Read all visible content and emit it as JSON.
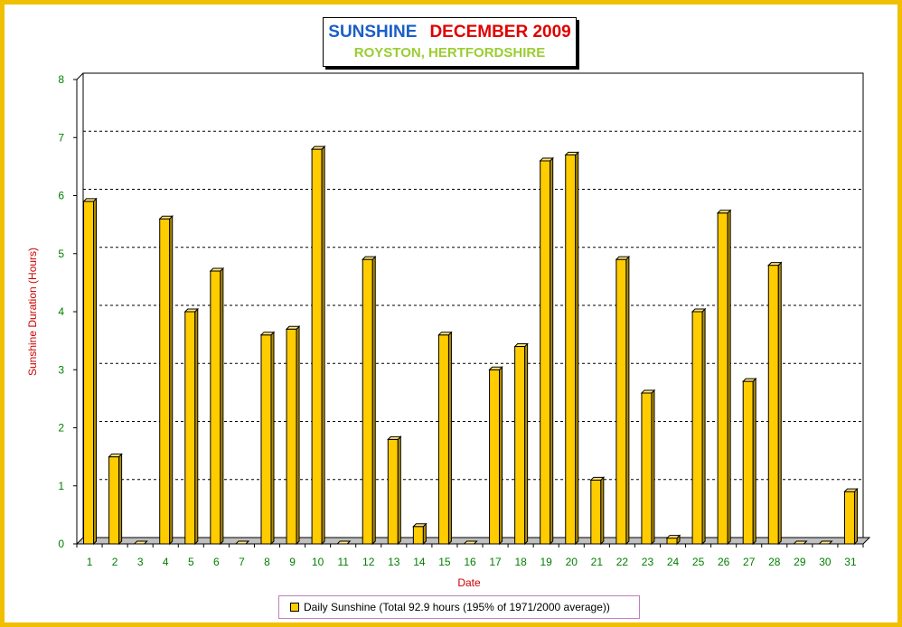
{
  "window": {
    "title": "SUNSHINE",
    "month": "DECEMBER 2009",
    "location": "ROYSTON, HERTFORDSHIRE"
  },
  "colors": {
    "frame": "#f0c000",
    "bar_front": "#ffcc00",
    "bar_side": "#b38f00",
    "bar_top": "#ffe680",
    "axis_text": "#008000",
    "ylabel_text": "#cc0000",
    "title_blue": "#1a5fc8",
    "title_red": "#e00000",
    "subtitle": "#9acd32"
  },
  "legend": {
    "label": "Daily Sunshine (Total 92.9 hours (195% of 1971/2000 average))"
  },
  "chart_data": {
    "type": "bar",
    "title": "SUNSHINE   DECEMBER 2009",
    "subtitle": "ROYSTON, HERTFORDSHIRE",
    "xlabel": "Date",
    "ylabel": "Sunshine Duration (Hours)",
    "ylim": [
      0,
      8
    ],
    "yticks": [
      "0",
      "1",
      "2",
      "3",
      "4",
      "5",
      "6",
      "7",
      "8"
    ],
    "grid": "horizontal dashed",
    "legend_position": "bottom",
    "categories": [
      "1",
      "2",
      "3",
      "4",
      "5",
      "6",
      "7",
      "8",
      "9",
      "10",
      "11",
      "12",
      "13",
      "14",
      "15",
      "16",
      "17",
      "18",
      "19",
      "20",
      "21",
      "22",
      "23",
      "24",
      "25",
      "26",
      "27",
      "28",
      "29",
      "30",
      "31"
    ],
    "series": [
      {
        "name": "Daily Sunshine (Total 92.9 hours (195% of 1971/2000 average))",
        "values": [
          5.9,
          1.5,
          0,
          5.6,
          4.0,
          4.7,
          0,
          3.6,
          3.7,
          6.8,
          0,
          4.9,
          1.8,
          0.3,
          3.6,
          0,
          3.0,
          3.4,
          6.6,
          6.7,
          1.1,
          4.9,
          2.6,
          0.1,
          4.0,
          5.7,
          2.8,
          4.8,
          0,
          0,
          0.9
        ]
      }
    ]
  }
}
